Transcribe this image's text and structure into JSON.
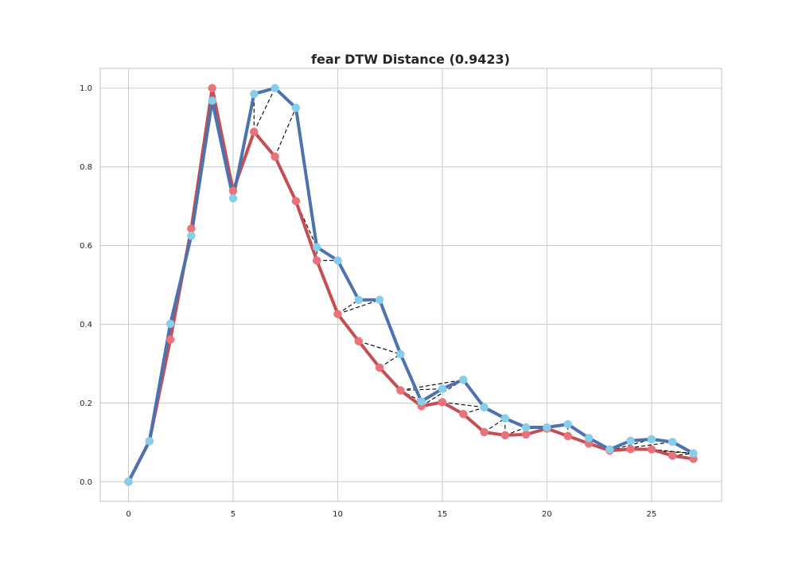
{
  "chart_data": {
    "type": "line",
    "title": "fear DTW Distance (0.9423)",
    "xlabel": "",
    "ylabel": "",
    "xlim": [
      -1.35,
      28.35
    ],
    "ylim": [
      -0.05,
      1.05
    ],
    "xticks": [
      0,
      5,
      10,
      15,
      20,
      25
    ],
    "yticks": [
      0.0,
      0.2,
      0.4,
      0.6,
      0.8,
      1.0
    ],
    "xtick_labels": [
      "0",
      "5",
      "10",
      "15",
      "20",
      "25"
    ],
    "ytick_labels": [
      "0.0",
      "0.2",
      "0.4",
      "0.6",
      "0.8",
      "1.0"
    ],
    "grid": true,
    "legend": "none",
    "series": [
      {
        "color": "#c44e52",
        "marker_color": "#e8737a",
        "x": [
          0,
          1,
          2,
          3,
          4,
          5,
          6,
          7,
          8,
          9,
          10,
          11,
          12,
          13,
          14,
          15,
          16,
          17,
          18,
          19,
          20,
          21,
          22,
          23,
          24,
          25,
          26,
          27
        ],
        "values": [
          0.0,
          0.103,
          0.361,
          0.643,
          1.0,
          0.739,
          0.889,
          0.826,
          0.713,
          0.562,
          0.426,
          0.357,
          0.29,
          0.232,
          0.192,
          0.202,
          0.172,
          0.126,
          0.118,
          0.12,
          0.135,
          0.116,
          0.097,
          0.079,
          0.083,
          0.082,
          0.066,
          0.058
        ]
      },
      {
        "color": "#4c72b0",
        "marker_color": "#87ceeb",
        "x": [
          0,
          1,
          2,
          3,
          4,
          5,
          6,
          7,
          8,
          9,
          10,
          11,
          12,
          13,
          14,
          15,
          16,
          17,
          18,
          19,
          20,
          21,
          22,
          23,
          24,
          25,
          26,
          27
        ],
        "values": [
          0.0,
          0.103,
          0.401,
          0.625,
          0.968,
          0.72,
          0.985,
          1.0,
          0.95,
          0.596,
          0.562,
          0.462,
          0.462,
          0.324,
          0.204,
          0.236,
          0.259,
          0.189,
          0.161,
          0.138,
          0.138,
          0.146,
          0.111,
          0.082,
          0.104,
          0.108,
          0.101,
          0.072
        ]
      }
    ],
    "alignment": [
      [
        0,
        0
      ],
      [
        1,
        1
      ],
      [
        2,
        2
      ],
      [
        3,
        3
      ],
      [
        4,
        4
      ],
      [
        5,
        5
      ],
      [
        6,
        6
      ],
      [
        6,
        7
      ],
      [
        7,
        8
      ],
      [
        8,
        9
      ],
      [
        9,
        9
      ],
      [
        9,
        10
      ],
      [
        10,
        11
      ],
      [
        10,
        12
      ],
      [
        11,
        13
      ],
      [
        12,
        13
      ],
      [
        13,
        14
      ],
      [
        13,
        15
      ],
      [
        13,
        16
      ],
      [
        14,
        16
      ],
      [
        15,
        17
      ],
      [
        16,
        17
      ],
      [
        17,
        18
      ],
      [
        18,
        18
      ],
      [
        18,
        19
      ],
      [
        19,
        19
      ],
      [
        19,
        20
      ],
      [
        20,
        20
      ],
      [
        21,
        21
      ],
      [
        22,
        22
      ],
      [
        23,
        23
      ],
      [
        23,
        24
      ],
      [
        23,
        25
      ],
      [
        23,
        26
      ],
      [
        24,
        27
      ],
      [
        25,
        27
      ],
      [
        26,
        27
      ],
      [
        27,
        27
      ]
    ],
    "alignment_line_color": "#000000",
    "background_color": "#ffffff",
    "grid_color": "#cccccc"
  }
}
